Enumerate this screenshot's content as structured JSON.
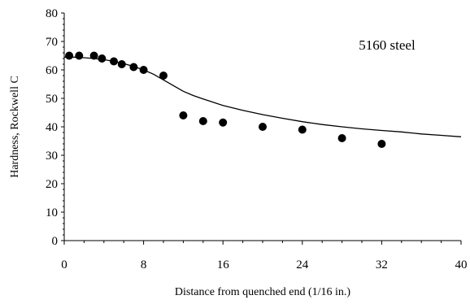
{
  "chart_data": {
    "type": "scatter",
    "annotation": "5160 steel",
    "xlabel": "Distance from quenched end (1/16 in.)",
    "ylabel": "Hardness, Rockwell C",
    "xlim": [
      0,
      40
    ],
    "ylim": [
      0,
      80
    ],
    "x_ticks": [
      0,
      8,
      16,
      24,
      32,
      40
    ],
    "y_ticks": [
      0,
      10,
      20,
      30,
      40,
      50,
      60,
      70,
      80
    ],
    "grid": false,
    "series": [
      {
        "kind": "points",
        "color": "#000000",
        "x": [
          0.5,
          1.5,
          3.0,
          3.8,
          5.0,
          5.8,
          7.0,
          8.0,
          10.0,
          12.0,
          14.0,
          16.0,
          20.0,
          24.0,
          28.0,
          32.0
        ],
        "y": [
          65,
          65,
          65,
          64,
          63,
          62,
          61,
          60,
          58,
          44,
          42,
          41.5,
          40,
          39,
          36,
          34
        ]
      },
      {
        "kind": "line",
        "color": "#000000",
        "x": [
          0,
          1,
          2,
          3,
          4,
          5,
          6,
          7,
          8,
          9,
          10,
          11,
          12,
          13,
          14,
          16,
          18,
          20,
          22,
          24,
          26,
          28,
          30,
          32,
          34,
          36,
          38,
          40
        ],
        "y": [
          64.5,
          64.5,
          64.3,
          64,
          63.6,
          63,
          62.2,
          61.2,
          60,
          58.5,
          56.5,
          54.5,
          52.5,
          51,
          49.8,
          47.5,
          45.8,
          44.3,
          43,
          41.8,
          40.8,
          40,
          39.3,
          38.7,
          38.2,
          37.5,
          37,
          36.5
        ]
      }
    ]
  }
}
